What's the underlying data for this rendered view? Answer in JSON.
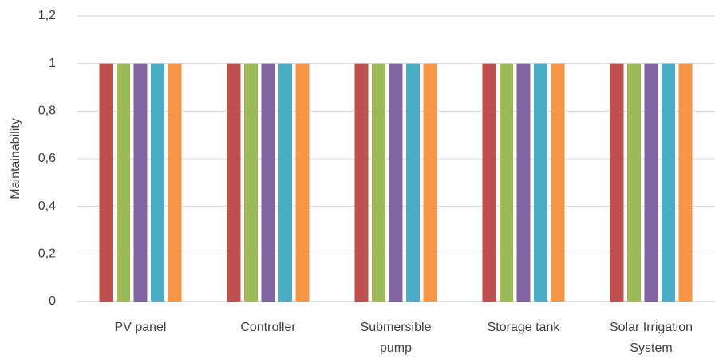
{
  "chart_data": {
    "type": "bar",
    "y_label": "Maintainability",
    "categories": [
      "PV panel",
      "Controller",
      "Submersible pump",
      "Storage tank",
      "Solar Irrigation System"
    ],
    "series": [
      {
        "color": "#c0504d",
        "values": [
          1,
          1,
          1,
          1,
          1
        ]
      },
      {
        "color": "#9bbb59",
        "values": [
          1,
          1,
          1,
          1,
          1
        ]
      },
      {
        "color": "#8064a2",
        "values": [
          1,
          1,
          1,
          1,
          1
        ]
      },
      {
        "color": "#4bacc6",
        "values": [
          1,
          1,
          1,
          1,
          1
        ]
      },
      {
        "color": "#f79646",
        "values": [
          1,
          1,
          1,
          1,
          1
        ]
      }
    ],
    "ylim": [
      0,
      1.2
    ],
    "yticks": [
      0,
      {
        "value": 0.2,
        "label": "0,2"
      },
      {
        "value": 0.4,
        "label": "0,4"
      },
      {
        "value": 0.6,
        "label": "0,6"
      },
      {
        "value": 0.8,
        "label": "0,8"
      },
      1,
      {
        "value": 1.2,
        "label": "1,2"
      }
    ],
    "grid": true
  }
}
